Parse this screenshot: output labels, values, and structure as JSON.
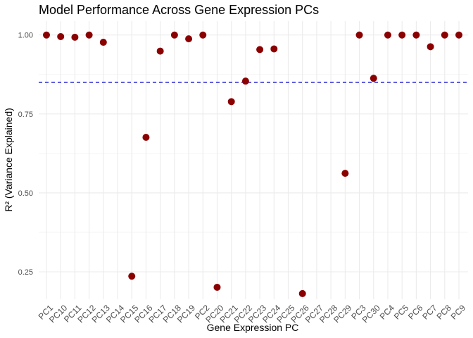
{
  "chart_data": {
    "type": "scatter",
    "title": "Model Performance Across Gene Expression PCs",
    "xlabel": "Gene Expression PC",
    "ylabel": "R² (Variance Explained)",
    "categories": [
      "PC1",
      "PC10",
      "PC11",
      "PC12",
      "PC13",
      "PC14",
      "PC15",
      "PC16",
      "PC17",
      "PC18",
      "PC19",
      "PC2",
      "PC20",
      "PC21",
      "PC22",
      "PC23",
      "PC24",
      "PC25",
      "PC26",
      "PC27",
      "PC28",
      "PC29",
      "PC3",
      "PC30",
      "PC4",
      "PC5",
      "PC6",
      "PC7",
      "PC8",
      "PC9"
    ],
    "values": [
      1.0,
      0.995,
      0.993,
      1.0,
      0.977,
      null,
      0.236,
      0.676,
      0.949,
      1.0,
      0.988,
      1.0,
      0.201,
      0.789,
      0.854,
      0.954,
      0.956,
      null,
      0.181,
      null,
      null,
      0.562,
      1.0,
      0.863,
      1.0,
      1.0,
      1.0,
      0.963,
      1.0,
      1.0
    ],
    "yticks": [
      0.25,
      0.5,
      0.75,
      1.0
    ],
    "ytick_labels": [
      "0.25",
      "0.50",
      "0.75",
      "1.00"
    ],
    "ylim": [
      0.163,
      1.044
    ],
    "reference_line": {
      "y": 0.85,
      "style": "dashed",
      "color": "#0000cc"
    },
    "point_color": "#8b0000",
    "grid": true
  }
}
